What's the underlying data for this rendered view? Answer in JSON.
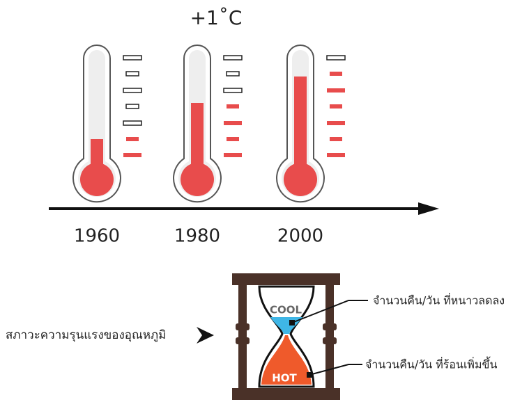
{
  "title": "+1˚C",
  "thermometers": [
    {
      "year": "1960"
    },
    {
      "year": "1980"
    },
    {
      "year": "2000"
    }
  ],
  "hourglass": {
    "top_label": "COOL",
    "bottom_label": "HOT",
    "left_label": "สภาวะความรุนแรงของอุณหภูมิ",
    "callouts": [
      "จำนวนคืน/วัน ที่หนาวลดลง",
      "จำนวนคืน/วัน ที่ร้อนเพิ่มขึ้น"
    ]
  }
}
